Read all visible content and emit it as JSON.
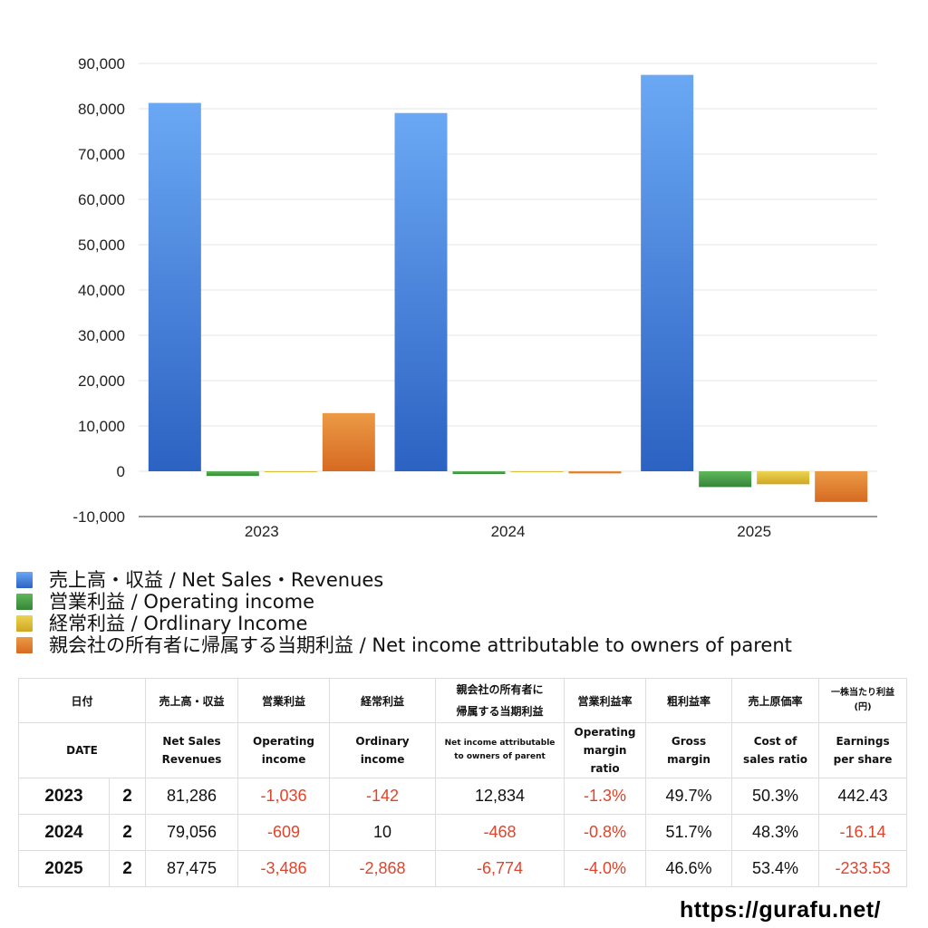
{
  "chart_data": {
    "type": "bar",
    "categories": [
      "2023",
      "2024",
      "2025"
    ],
    "ylim": [
      -10000,
      90000
    ],
    "yticks": [
      "90,000",
      "80,000",
      "70,000",
      "60,000",
      "50,000",
      "40,000",
      "30,000",
      "20,000",
      "10,000",
      "0",
      "-10,000"
    ],
    "ytick_values": [
      90000,
      80000,
      70000,
      60000,
      50000,
      40000,
      30000,
      20000,
      10000,
      0,
      -10000
    ],
    "grid": true,
    "legend_position": "bottom",
    "series": [
      {
        "name": "売上高・収益 / Net Sales・Revenues",
        "values": [
          81286,
          79056,
          87475
        ],
        "color_top": "#6aa8f4",
        "color_bottom": "#2c62c2"
      },
      {
        "name": "営業利益 / Operating income",
        "values": [
          -1036,
          -609,
          -3486
        ],
        "color_top": "#5fb85a",
        "color_bottom": "#36853a"
      },
      {
        "name": "経常利益 / Ordlinary Income",
        "values": [
          -142,
          10,
          -2868
        ],
        "color_top": "#ecd452",
        "color_bottom": "#cfa722"
      },
      {
        "name": "親会社の所有者に帰属する当期利益 / Net income attributable to owners of parent",
        "values": [
          12834,
          -468,
          -6774
        ],
        "color_top": "#eb9a45",
        "color_bottom": "#d66a22"
      }
    ]
  },
  "table": {
    "header_jp": {
      "date": "日付",
      "sales": "売上高・収益",
      "operating": "営業利益",
      "ordinary": "経常利益",
      "net_line1": "親会社の所有者に",
      "net_line2": "帰属する当期利益",
      "op_margin": "営業利益率",
      "gross": "粗利益率",
      "cost": "売上原価率",
      "eps_line1": "一株当たり利益",
      "eps_line2": "(円)"
    },
    "header_en": {
      "date": "DATE",
      "sales_line1": "Net Sales",
      "sales_line2": "Revenues",
      "operating_line1": "Operating",
      "operating_line2": "income",
      "ordinary_line1": "Ordinary",
      "ordinary_line2": "income",
      "net_line1": "Net income attributable",
      "net_line2": "to owners of parent",
      "op_margin_line1": "Operating",
      "op_margin_line2": "margin",
      "op_margin_line3": "ratio",
      "gross_line1": "Gross",
      "gross_line2": "margin",
      "cost_line1": "Cost of",
      "cost_line2": "sales ratio",
      "eps_line1": "Earnings",
      "eps_line2": "per share"
    },
    "rows": [
      {
        "year": "2023",
        "month": "2",
        "sales": "81,286",
        "operating": "-1,036",
        "ordinary": "-142",
        "net": "12,834",
        "op_margin": "-1.3%",
        "gross": "49.7%",
        "cost": "50.3%",
        "eps": "442.43"
      },
      {
        "year": "2024",
        "month": "2",
        "sales": "79,056",
        "operating": "-609",
        "ordinary": "10",
        "net": "-468",
        "op_margin": "-0.8%",
        "gross": "51.7%",
        "cost": "48.3%",
        "eps": "-16.14"
      },
      {
        "year": "2025",
        "month": "2",
        "sales": "87,475",
        "operating": "-3,486",
        "ordinary": "-2,868",
        "net": "-6,774",
        "op_margin": "-4.0%",
        "gross": "46.6%",
        "cost": "53.4%",
        "eps": "-233.53"
      }
    ]
  },
  "footer": {
    "url": "https://gurafu.net/"
  }
}
